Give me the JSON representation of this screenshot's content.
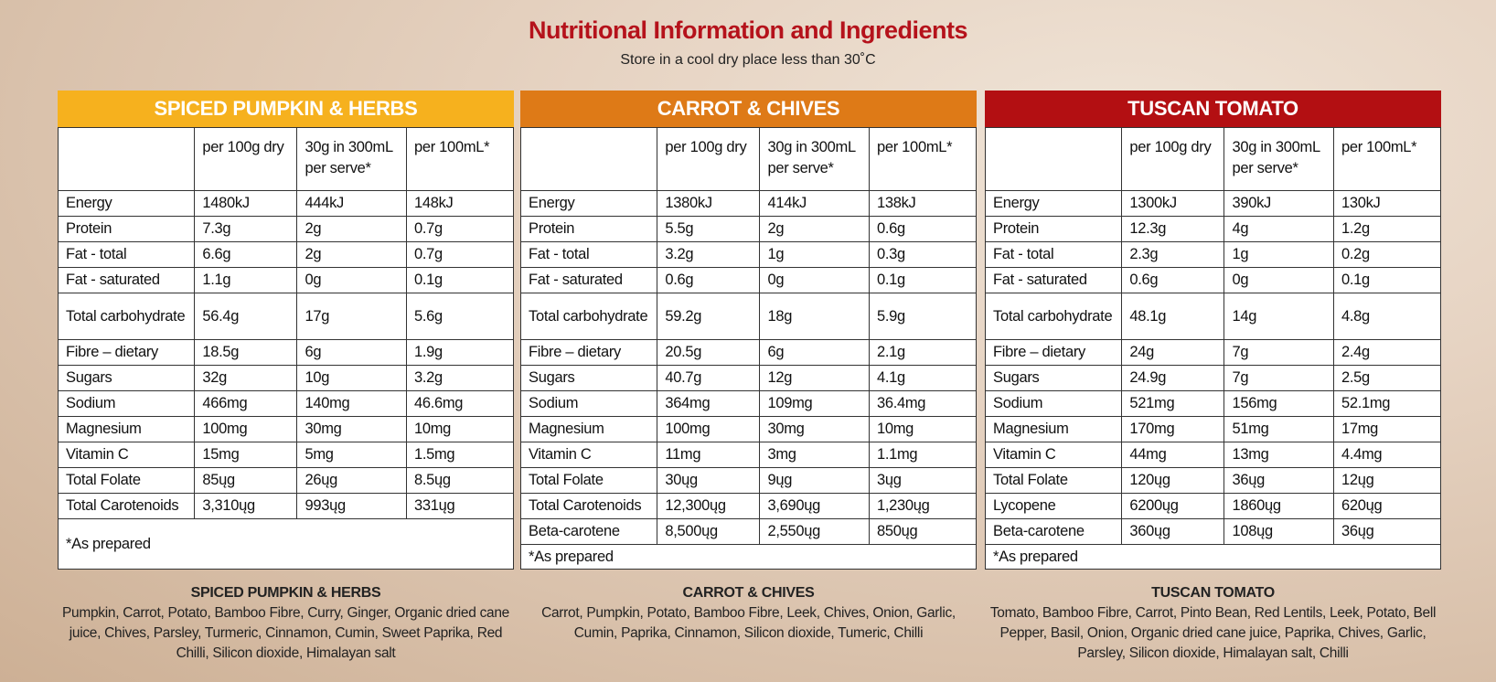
{
  "header": {
    "title": "Nutritional Information and Ingredients",
    "subtitle": "Store in a cool dry place less than 30˚C"
  },
  "tables": [
    {
      "title": "SPICED PUMPKIN & HERBS",
      "columns": [
        "",
        "per 100g dry",
        "30g in 300mL per serve*",
        "per 100mL*"
      ],
      "rows": [
        [
          "Energy",
          "1480kJ",
          "444kJ",
          "148kJ"
        ],
        [
          "Protein",
          "7.3g",
          "2g",
          "0.7g"
        ],
        [
          "Fat - total",
          "6.6g",
          "2g",
          "0.7g"
        ],
        [
          "Fat - saturated",
          "1.1g",
          "0g",
          "0.1g"
        ],
        [
          "Total carbohydrate",
          "56.4g",
          "17g",
          "5.6g"
        ],
        [
          "Fibre – dietary",
          "18.5g",
          "6g",
          "1.9g"
        ],
        [
          "Sugars",
          "32g",
          "10g",
          "3.2g"
        ],
        [
          "Sodium",
          "466mg",
          "140mg",
          "46.6mg"
        ],
        [
          "Magnesium",
          "100mg",
          "30mg",
          "10mg"
        ],
        [
          "Vitamin C",
          "15mg",
          "5mg",
          "1.5mg"
        ],
        [
          "Total Folate",
          "85ųg",
          "26ųg",
          "8.5ųg"
        ],
        [
          "Total Carotenoids",
          "3,310ųg",
          "993ųg",
          "331ųg"
        ]
      ],
      "footnote": "*As prepared",
      "ingredients_title": "SPICED PUMPKIN & HERBS",
      "ingredients": "Pumpkin, Carrot, Potato, Bamboo Fibre, Curry, Ginger, Organic dried cane juice, Chives, Parsley, Turmeric, Cinnamon, Cumin, Sweet Paprika, Red Chilli, Silicon dioxide, Himalayan salt"
    },
    {
      "title": "CARROT & CHIVES",
      "columns": [
        "",
        "per 100g dry",
        "30g in 300mL per serve*",
        "per 100mL*"
      ],
      "rows": [
        [
          "Energy",
          "1380kJ",
          "414kJ",
          "138kJ"
        ],
        [
          "Protein",
          "5.5g",
          "2g",
          "0.6g"
        ],
        [
          "Fat - total",
          "3.2g",
          "1g",
          "0.3g"
        ],
        [
          "Fat - saturated",
          "0.6g",
          "0g",
          "0.1g"
        ],
        [
          "Total carbohydrate",
          "59.2g",
          "18g",
          "5.9g"
        ],
        [
          "Fibre – dietary",
          "20.5g",
          "6g",
          "2.1g"
        ],
        [
          "Sugars",
          "40.7g",
          "12g",
          "4.1g"
        ],
        [
          "Sodium",
          "364mg",
          "109mg",
          "36.4mg"
        ],
        [
          "Magnesium",
          "100mg",
          "30mg",
          "10mg"
        ],
        [
          "Vitamin C",
          "11mg",
          "3mg",
          "1.1mg"
        ],
        [
          "Total Folate",
          "30ųg",
          "9ųg",
          "3ųg"
        ],
        [
          "Total Carotenoids",
          "12,300ųg",
          "3,690ųg",
          "1,230ųg"
        ],
        [
          "Beta-carotene",
          "8,500ųg",
          "2,550ųg",
          "850ųg"
        ]
      ],
      "footnote": "*As prepared",
      "ingredients_title": "CARROT & CHIVES",
      "ingredients": "Carrot, Pumpkin, Potato, Bamboo Fibre, Leek, Chives, Onion, Garlic, Cumin, Paprika, Cinnamon, Silicon dioxide, Tumeric, Chilli"
    },
    {
      "title": "TUSCAN TOMATO",
      "columns": [
        "",
        "per 100g dry",
        "30g in 300mL per serve*",
        "per 100mL*"
      ],
      "rows": [
        [
          "Energy",
          "1300kJ",
          "390kJ",
          "130kJ"
        ],
        [
          "Protein",
          "12.3g",
          "4g",
          "1.2g"
        ],
        [
          "Fat - total",
          "2.3g",
          "1g",
          "0.2g"
        ],
        [
          "Fat - saturated",
          "0.6g",
          "0g",
          "0.1g"
        ],
        [
          "Total carbohydrate",
          "48.1g",
          "14g",
          "4.8g"
        ],
        [
          "Fibre – dietary",
          "24g",
          "7g",
          "2.4g"
        ],
        [
          "Sugars",
          "24.9g",
          "7g",
          "2.5g"
        ],
        [
          "Sodium",
          "521mg",
          "156mg",
          "52.1mg"
        ],
        [
          "Magnesium",
          "170mg",
          "51mg",
          "17mg"
        ],
        [
          "Vitamin C",
          "44mg",
          "13mg",
          "4.4mg"
        ],
        [
          "Total Folate",
          "120ųg",
          "36ųg",
          "12ųg"
        ],
        [
          "Lycopene",
          "6200ųg",
          "1860ųg",
          "620ųg"
        ],
        [
          "Beta-carotene",
          "360ųg",
          "108ųg",
          "36ųg"
        ]
      ],
      "footnote": "*As prepared",
      "ingredients_title": "TUSCAN TOMATO",
      "ingredients": "Tomato, Bamboo Fibre, Carrot, Pinto Bean, Red Lentils, Leek, Potato, Bell Pepper, Basil, Onion, Organic dried cane juice, Paprika, Chives, Garlic, Parsley, Silicon dioxide, Himalayan salt, Chilli"
    }
  ]
}
